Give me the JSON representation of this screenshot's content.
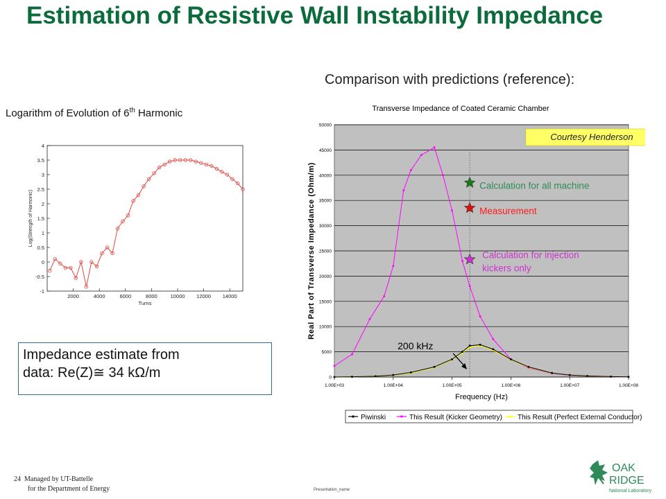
{
  "slide": {
    "title": "Estimation of Resistive Wall Instability Impedance",
    "comparison_heading": "Comparison with predictions (reference):",
    "log_heading": "Logarithm of Evolution of 6",
    "log_heading_sup": "th",
    "log_heading_tail": " Harmonic",
    "estimate_line1": "Impedance estimate from",
    "estimate_line2": "data: Re(Z)≅ 34 kΩ/m",
    "page_number": "24",
    "footer_line1": "Managed by UT-Battelle",
    "footer_line2": "for the Department of Energy",
    "presentation_name": "Presentation_name",
    "logo_line1": "OAK",
    "logo_line2": "RIDGE",
    "logo_line3": "National Laboratory"
  },
  "colors": {
    "title": "#0b6b3a",
    "log_series": "#e0473f",
    "pink": "#ff00ff",
    "yellow": "#ffff00",
    "black": "#000000",
    "plot_bg": "#c0c0c0",
    "courtesy_bg": "#ffff66",
    "all_machine_label": "#2e8b57",
    "measurement_label": "#ff1a1a",
    "injection_label": "#cc33cc"
  },
  "chart_data": [
    {
      "type": "line",
      "title": "",
      "xlabel": "Turns",
      "ylabel": "Log(Strength of Harmonic)",
      "xlim": [
        0,
        15000
      ],
      "ylim": [
        -1,
        4
      ],
      "xticks": [
        2000,
        4000,
        6000,
        8000,
        10000,
        12000,
        14000
      ],
      "yticks": [
        -1,
        -0.5,
        0,
        0.5,
        1,
        1.5,
        2,
        2.5,
        3,
        3.5,
        4
      ],
      "grid": false,
      "series": [
        {
          "x": [
            200,
            600,
            1000,
            1400,
            1800,
            2200,
            2600,
            3000,
            3400,
            3800,
            4200,
            4600,
            5000,
            5400,
            5800,
            6200,
            6600,
            7000,
            7400,
            7800,
            8200,
            8600,
            9000,
            9400,
            9800,
            10200,
            10600,
            11000,
            11400,
            11800,
            12200,
            12600,
            13000,
            13400,
            13800,
            14200,
            14600,
            15000
          ],
          "y": [
            -0.3,
            0.1,
            -0.05,
            -0.2,
            -0.2,
            -0.55,
            0.0,
            -0.85,
            0.0,
            -0.15,
            0.3,
            0.5,
            0.3,
            1.15,
            1.4,
            1.6,
            2.1,
            2.3,
            2.6,
            2.85,
            3.05,
            3.25,
            3.35,
            3.45,
            3.5,
            3.5,
            3.5,
            3.5,
            3.45,
            3.4,
            3.35,
            3.3,
            3.2,
            3.1,
            3.0,
            2.85,
            2.7,
            2.5
          ]
        }
      ]
    },
    {
      "type": "line",
      "title": "Transverse Impedance of Coated Ceramic Chamber",
      "xlabel": "Frequency (Hz)",
      "ylabel": "Real Part of Transverse Impedance (Ohm/m)",
      "xscale": "log",
      "xlim": [
        1000,
        100000000
      ],
      "ylim": [
        0,
        50000
      ],
      "xticks": [
        "1.00E+03",
        "1.00E+04",
        "1.00E+05",
        "1.00E+06",
        "1.00E+07",
        "1.00E+08"
      ],
      "yticks": [
        "0",
        "5000",
        "10000",
        "15000",
        "20000",
        "25000",
        "30000",
        "35000",
        "40000",
        "45000",
        "50000"
      ],
      "grid": true,
      "legend_position": "bottom",
      "series": [
        {
          "name": "Piwinski",
          "color": "#000000",
          "x": [
            1000,
            2000,
            5000,
            10000,
            20000,
            50000,
            100000,
            150000,
            200000,
            300000,
            500000,
            1000000,
            2000000,
            5000000,
            10000000,
            20000000,
            50000000,
            100000000
          ],
          "y": [
            0,
            50,
            150,
            400,
            900,
            2000,
            3500,
            5000,
            6200,
            6400,
            5500,
            3500,
            2000,
            800,
            400,
            200,
            80,
            30
          ]
        },
        {
          "name": "This Result (Kicker Geometry)",
          "color": "#ff00ff",
          "x": [
            1000,
            2000,
            4000,
            7000,
            10000,
            15000,
            20000,
            30000,
            50000,
            70000,
            100000,
            150000,
            200000,
            300000,
            500000,
            1000000,
            2000000,
            5000000,
            10000000,
            20000000,
            50000000,
            100000000
          ],
          "y": [
            2200,
            4500,
            11500,
            16000,
            22000,
            37000,
            41000,
            44000,
            45500,
            40000,
            33000,
            23000,
            18000,
            12000,
            7500,
            3500,
            1800,
            700,
            350,
            150,
            60,
            20
          ]
        },
        {
          "name": "This Result (Perfect External Conductor)",
          "color": "#ffff00",
          "x": [
            1000,
            2000,
            5000,
            10000,
            20000,
            50000,
            100000,
            150000,
            200000,
            300000,
            500000,
            1000000,
            2000000,
            5000000,
            10000000,
            20000000,
            50000000,
            100000000
          ],
          "y": [
            0,
            40,
            120,
            350,
            800,
            1900,
            3400,
            4800,
            5900,
            6200,
            5300,
            3400,
            1900,
            750,
            380,
            180,
            70,
            25
          ]
        }
      ],
      "markers": [
        {
          "label": "Calculation for all machine",
          "frequency": 200000,
          "value": 38500,
          "color": "#1a7a1a"
        },
        {
          "label": "Measurement",
          "frequency": 200000,
          "value": 33500,
          "color": "#e01010"
        },
        {
          "label": "Calculation for injection kickers only",
          "frequency": 200000,
          "value": 23300,
          "color": "#cc33cc"
        }
      ],
      "annotations": {
        "courtesy": "Courtesy Henderson",
        "frequency_marker": "200 kHz"
      }
    }
  ]
}
